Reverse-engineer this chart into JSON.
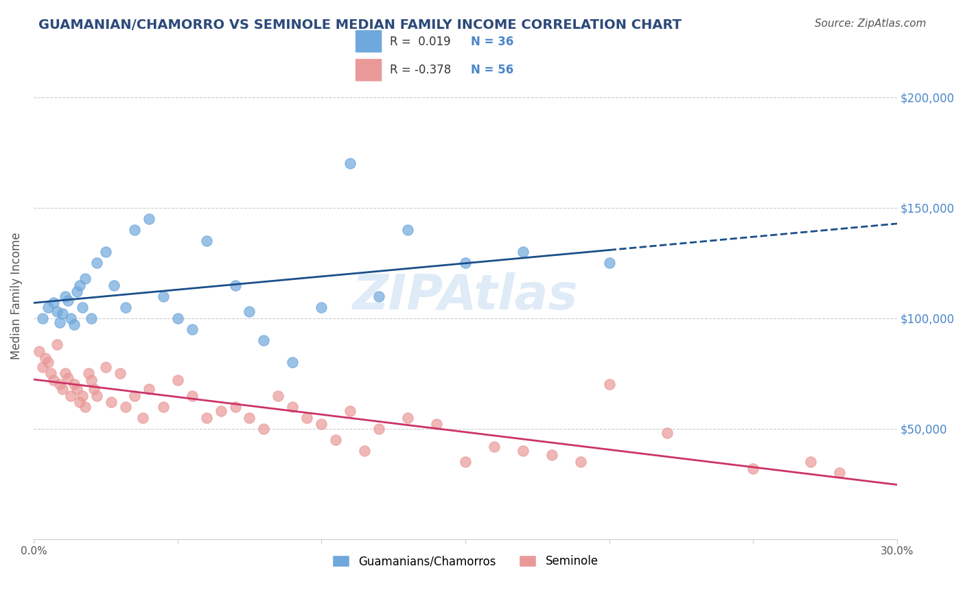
{
  "title": "GUAMANIAN/CHAMORRO VS SEMINOLE MEDIAN FAMILY INCOME CORRELATION CHART",
  "source": "Source: ZipAtlas.com",
  "xlabel": "",
  "ylabel": "Median Family Income",
  "xlim": [
    0.0,
    30.0
  ],
  "ylim": [
    0,
    220000
  ],
  "yticks": [
    0,
    50000,
    100000,
    150000,
    200000
  ],
  "ytick_labels": [
    "",
    "$50,000",
    "$100,000",
    "$150,000",
    "$200,000"
  ],
  "xticks": [
    0.0,
    5.0,
    10.0,
    15.0,
    20.0,
    25.0,
    30.0
  ],
  "xtick_labels": [
    "0.0%",
    "",
    "",
    "",
    "",
    "",
    "30.0%"
  ],
  "blue_R": 0.019,
  "blue_N": 36,
  "pink_R": -0.378,
  "pink_N": 56,
  "blue_label": "Guamanians/Chamorros",
  "pink_label": "Seminole",
  "blue_color": "#6fa8dc",
  "pink_color": "#ea9999",
  "blue_line_color": "#1a4f8a",
  "pink_line_color": "#cc3366",
  "watermark": "ZIPAtlas",
  "watermark_color": "#c0d8f0",
  "blue_scatter_x": [
    0.3,
    0.5,
    0.7,
    0.8,
    0.9,
    1.0,
    1.1,
    1.2,
    1.3,
    1.4,
    1.5,
    1.6,
    1.7,
    1.8,
    2.0,
    2.2,
    2.5,
    2.8,
    3.2,
    3.5,
    4.0,
    4.5,
    5.0,
    5.5,
    6.0,
    7.0,
    7.5,
    8.0,
    9.0,
    10.0,
    11.0,
    12.0,
    13.0,
    15.0,
    17.0,
    20.0
  ],
  "blue_scatter_y": [
    100000,
    105000,
    107000,
    103000,
    98000,
    102000,
    110000,
    108000,
    100000,
    97000,
    112000,
    115000,
    105000,
    118000,
    100000,
    125000,
    130000,
    115000,
    105000,
    140000,
    145000,
    110000,
    100000,
    95000,
    135000,
    115000,
    103000,
    90000,
    80000,
    105000,
    170000,
    110000,
    140000,
    125000,
    130000,
    125000
  ],
  "pink_scatter_x": [
    0.2,
    0.3,
    0.4,
    0.5,
    0.6,
    0.7,
    0.8,
    0.9,
    1.0,
    1.1,
    1.2,
    1.3,
    1.4,
    1.5,
    1.6,
    1.7,
    1.8,
    1.9,
    2.0,
    2.1,
    2.2,
    2.5,
    2.7,
    3.0,
    3.2,
    3.5,
    3.8,
    4.0,
    4.5,
    5.0,
    5.5,
    6.0,
    6.5,
    7.0,
    7.5,
    8.0,
    8.5,
    9.0,
    9.5,
    10.0,
    10.5,
    11.0,
    11.5,
    12.0,
    13.0,
    14.0,
    15.0,
    16.0,
    17.0,
    18.0,
    19.0,
    20.0,
    22.0,
    25.0,
    27.0,
    28.0
  ],
  "pink_scatter_y": [
    85000,
    78000,
    82000,
    80000,
    75000,
    72000,
    88000,
    70000,
    68000,
    75000,
    73000,
    65000,
    70000,
    68000,
    62000,
    65000,
    60000,
    75000,
    72000,
    68000,
    65000,
    78000,
    62000,
    75000,
    60000,
    65000,
    55000,
    68000,
    60000,
    72000,
    65000,
    55000,
    58000,
    60000,
    55000,
    50000,
    65000,
    60000,
    55000,
    52000,
    45000,
    58000,
    40000,
    50000,
    55000,
    52000,
    35000,
    42000,
    40000,
    38000,
    35000,
    70000,
    48000,
    32000,
    35000,
    30000
  ]
}
